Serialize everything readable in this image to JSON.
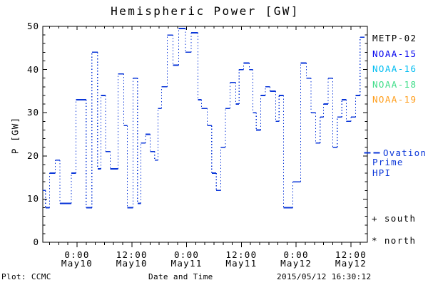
{
  "title": "Hemispheric Power [GW]",
  "x_axis": {
    "label": "Date and Time",
    "major_ticks": [
      {
        "t": 0,
        "time": "0:00",
        "date": "May10"
      },
      {
        "t": 12,
        "time": "12:00",
        "date": "May10"
      },
      {
        "t": 24,
        "time": "0:00",
        "date": "May11"
      },
      {
        "t": 36,
        "time": "12:00",
        "date": "May11"
      },
      {
        "t": 48,
        "time": "0:00",
        "date": "May12"
      },
      {
        "t": 60,
        "time": "12:00",
        "date": "May12"
      }
    ],
    "minor_step_hours": 2,
    "t_left": -7.5,
    "t_right": 63.6
  },
  "y_axis": {
    "label": "P [GW]",
    "min": 0,
    "max": 50,
    "major_step": 10,
    "minor_step": 2
  },
  "legend": {
    "satellites": [
      {
        "label": "METP-02",
        "color": "#000000"
      },
      {
        "label": "NOAA-15",
        "color": "#0404ee"
      },
      {
        "label": "NOAA-16",
        "color": "#00bdf2"
      },
      {
        "label": "NOAA-18",
        "color": "#3edd88"
      },
      {
        "label": "NOAA-19",
        "color": "#ff9d1a"
      }
    ],
    "ovation": {
      "line1": "Ovation",
      "line2": "Prime HPI",
      "color": "#0a36d8"
    },
    "south_label": "+ south",
    "north_label": "* north"
  },
  "footer": {
    "plot_credit": "Plot: CCMC",
    "timestamp": "2015/05/12 16:30:12"
  },
  "chart_data": {
    "type": "line",
    "style": "step-after",
    "title": "Hemispheric Power [GW]",
    "xlabel": "Date and Time",
    "ylabel": "P [GW]",
    "ylim": [
      0,
      50
    ],
    "xlim": [
      -7.5,
      63.6
    ],
    "x_unit": "hours relative to 2015-05-10 00:00 UT",
    "grid": false,
    "legend_position": "right",
    "series": [
      {
        "name": "Ovation Prime HPI",
        "color": "#0a36d8",
        "t_end": 63,
        "points": [
          [
            -7.5,
            12
          ],
          [
            -6.9,
            8
          ],
          [
            -6,
            16
          ],
          [
            -4.75,
            19
          ],
          [
            -3.75,
            9
          ],
          [
            -1.25,
            16
          ],
          [
            -0.25,
            33
          ],
          [
            2,
            8
          ],
          [
            3.25,
            44
          ],
          [
            4.5,
            17
          ],
          [
            5.25,
            34
          ],
          [
            6.25,
            21
          ],
          [
            7.25,
            17
          ],
          [
            9,
            39
          ],
          [
            10.25,
            27
          ],
          [
            11,
            8
          ],
          [
            12.25,
            38
          ],
          [
            13.25,
            9
          ],
          [
            14,
            23
          ],
          [
            15,
            25
          ],
          [
            16,
            21
          ],
          [
            17,
            19
          ],
          [
            17.75,
            31
          ],
          [
            18.5,
            36
          ],
          [
            19.75,
            48
          ],
          [
            21,
            41
          ],
          [
            22.25,
            49.5
          ],
          [
            23.75,
            44
          ],
          [
            25,
            48.5
          ],
          [
            26.5,
            33
          ],
          [
            27.25,
            31
          ],
          [
            28.5,
            27
          ],
          [
            29.5,
            16
          ],
          [
            30.5,
            12
          ],
          [
            31.5,
            22
          ],
          [
            32.5,
            31
          ],
          [
            33.5,
            37
          ],
          [
            34.75,
            32
          ],
          [
            35.5,
            40
          ],
          [
            36.5,
            41.5
          ],
          [
            37.75,
            40
          ],
          [
            38.5,
            30
          ],
          [
            39.25,
            26
          ],
          [
            40.25,
            34
          ],
          [
            41.25,
            36
          ],
          [
            42.25,
            35
          ],
          [
            43.5,
            28
          ],
          [
            44.25,
            34
          ],
          [
            45.25,
            8
          ],
          [
            47.25,
            14
          ],
          [
            49,
            41.5
          ],
          [
            50.25,
            38
          ],
          [
            51.25,
            30
          ],
          [
            52.25,
            23
          ],
          [
            53.25,
            29
          ],
          [
            54,
            32
          ],
          [
            55,
            38
          ],
          [
            56,
            22
          ],
          [
            57,
            29
          ],
          [
            58,
            33
          ],
          [
            59,
            28
          ],
          [
            60,
            29
          ],
          [
            61,
            34
          ],
          [
            62,
            47.5
          ]
        ]
      }
    ]
  }
}
